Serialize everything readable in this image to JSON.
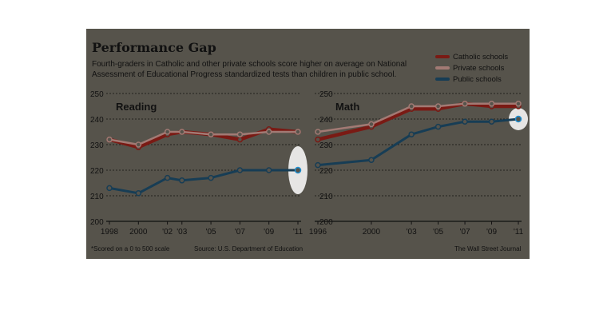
{
  "title": "Performance Gap",
  "subtitle": "Fourth-graders in Catholic and other private schools score higher on average on National Assessment of Educational Progress standardized tests  than children in public school.",
  "footnote": "*Scored on a 0 to 500 scale",
  "source": "Source: U.S. Department of Education",
  "credit": "The Wall Street Journal",
  "colors": {
    "background": "#56534b",
    "catholic": "#7a1a14",
    "private": "#a27a74",
    "public": "#173d55",
    "public_last": "#1f8fd0",
    "grid": "#111111",
    "highlight": "#ffffff"
  },
  "chart_data": [
    {
      "type": "line",
      "title": "Reading",
      "y_ticks": [
        "250",
        "240",
        "230",
        "220",
        "210",
        "200"
      ],
      "x_tick_labels": [
        "1998",
        "2000",
        "'02",
        "'03",
        "'05",
        "'07",
        "'09",
        "'11"
      ],
      "x": [
        1998,
        2000,
        2002,
        2003,
        2005,
        2007,
        2009,
        2011
      ],
      "ylim": [
        200,
        250
      ],
      "grid": true,
      "legend": "top-right",
      "series": [
        {
          "name": "Catholic schools",
          "values": [
            232,
            229,
            234,
            235,
            234,
            232,
            236,
            235
          ]
        },
        {
          "name": "Private schools",
          "values": [
            232,
            230,
            235,
            235,
            234,
            234,
            235,
            235
          ]
        },
        {
          "name": "Public schools",
          "values": [
            213,
            211,
            217,
            216,
            217,
            220,
            220,
            220
          ]
        }
      ]
    },
    {
      "type": "line",
      "title": "Math",
      "y_ticks": [
        "250",
        "240",
        "230",
        "220",
        "210",
        "200"
      ],
      "x_tick_labels": [
        "1996",
        "2000",
        "'03",
        "'05",
        "'07",
        "'09",
        "'11"
      ],
      "x": [
        1996,
        2000,
        2003,
        2005,
        2007,
        2009,
        2011
      ],
      "ylim": [
        200,
        250
      ],
      "grid": true,
      "legend": "top-right",
      "series": [
        {
          "name": "Catholic schools",
          "values": [
            232,
            237,
            244,
            244,
            246,
            245,
            245
          ]
        },
        {
          "name": "Private schools",
          "values": [
            235,
            238,
            245,
            245,
            246,
            246,
            246
          ]
        },
        {
          "name": "Public schools",
          "values": [
            222,
            224,
            234,
            237,
            239,
            239,
            240
          ]
        }
      ]
    }
  ]
}
